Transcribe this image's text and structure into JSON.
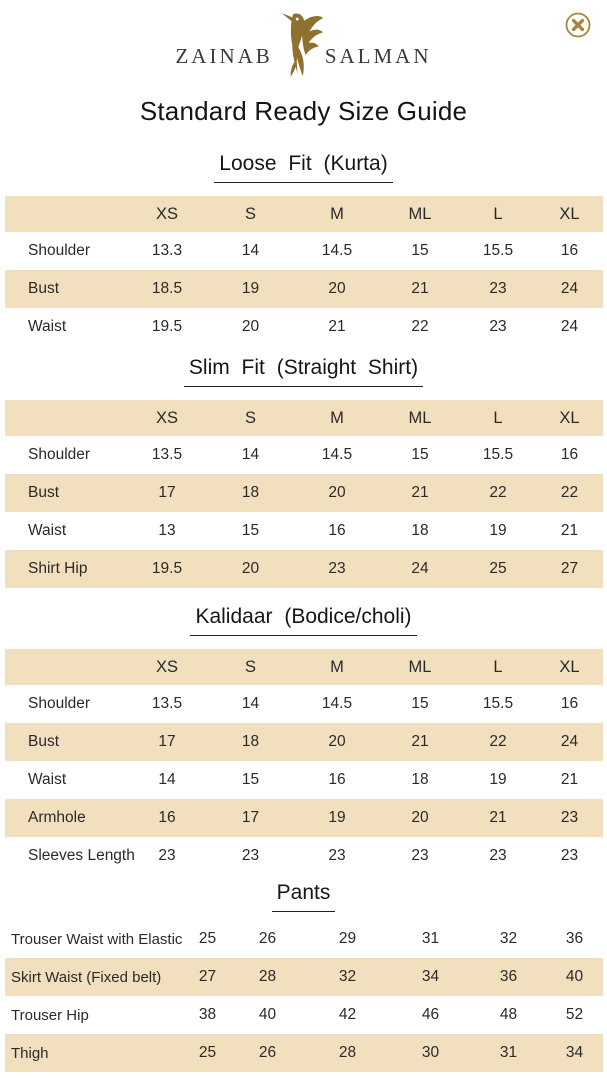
{
  "brand": {
    "left": "ZAINAB",
    "right": "SALMAN",
    "logo_icon": "gold-bird"
  },
  "page": {
    "title": "Standard Ready Size Guide"
  },
  "close": {
    "label": "Close"
  },
  "colors": {
    "row_highlight_tan": "#F2DFBD",
    "logo_gold": "#8E7031",
    "close_icon_gold": "#A5853B",
    "text": "#222222"
  },
  "sizes": [
    "XS",
    "S",
    "M",
    "ML",
    "L",
    "XL"
  ],
  "sections": [
    {
      "title": "Loose Fit (Kurta)",
      "header": true,
      "rows": [
        {
          "label": "Shoulder",
          "values": [
            "13.3",
            "14",
            "14.5",
            "15",
            "15.5",
            "16"
          ]
        },
        {
          "label": "Bust",
          "values": [
            "18.5",
            "19",
            "20",
            "21",
            "23",
            "24"
          ]
        },
        {
          "label": "Waist",
          "values": [
            "19.5",
            "20",
            "21",
            "22",
            "23",
            "24"
          ]
        }
      ]
    },
    {
      "title": "Slim Fit (Straight Shirt)",
      "header": true,
      "rows": [
        {
          "label": "Shoulder",
          "values": [
            "13.5",
            "14",
            "14.5",
            "15",
            "15.5",
            "16"
          ]
        },
        {
          "label": "Bust",
          "values": [
            "17",
            "18",
            "20",
            "21",
            "22",
            "22"
          ]
        },
        {
          "label": "Waist",
          "values": [
            "13",
            "15",
            "16",
            "18",
            "19",
            "21"
          ]
        },
        {
          "label": "Shirt Hip",
          "values": [
            "19.5",
            "20",
            "23",
            "24",
            "25",
            "27"
          ]
        }
      ]
    },
    {
      "title": "Kalidaar (Bodice/choli)",
      "header": true,
      "rows": [
        {
          "label": "Shoulder",
          "values": [
            "13.5",
            "14",
            "14.5",
            "15",
            "15.5",
            "16"
          ]
        },
        {
          "label": "Bust",
          "values": [
            "17",
            "18",
            "20",
            "21",
            "22",
            "24"
          ]
        },
        {
          "label": "Waist",
          "values": [
            "14",
            "15",
            "16",
            "18",
            "19",
            "21"
          ]
        },
        {
          "label": "Armhole",
          "values": [
            "16",
            "17",
            "19",
            "20",
            "21",
            "23"
          ]
        },
        {
          "label": "Sleeves Length",
          "values": [
            "23",
            "23",
            "23",
            "23",
            "23",
            "23"
          ]
        }
      ]
    },
    {
      "title": "Pants",
      "header": false,
      "rows": [
        {
          "label": "Trouser Waist with Elastic",
          "values": [
            "25",
            "26",
            "29",
            "31",
            "32",
            "36"
          ]
        },
        {
          "label": "Skirt Waist (Fixed belt)",
          "values": [
            "27",
            "28",
            "32",
            "34",
            "36",
            "40"
          ]
        },
        {
          "label": "Trouser Hip",
          "values": [
            "38",
            "40",
            "42",
            "46",
            "48",
            "52"
          ]
        },
        {
          "label": "Thigh",
          "values": [
            "25",
            "26",
            "28",
            "30",
            "31",
            "34"
          ]
        }
      ]
    }
  ]
}
